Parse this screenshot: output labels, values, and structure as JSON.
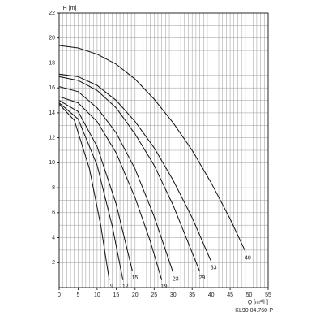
{
  "chart_data": {
    "type": "line",
    "y_label": "H [m]",
    "x_label": "Q [m³/h]",
    "note": "KL90.04.760-P",
    "xlim": [
      0,
      55
    ],
    "ylim": [
      0,
      22
    ],
    "xticks": [
      0,
      5,
      10,
      15,
      20,
      25,
      30,
      35,
      40,
      45,
      50,
      55
    ],
    "yticks": [
      2,
      4,
      6,
      8,
      10,
      12,
      14,
      16,
      18,
      20,
      22
    ],
    "grid": true,
    "minor_step_x": 1,
    "minor_step_y": 1,
    "color": "#111111",
    "series": [
      {
        "name": "9",
        "x": [
          0,
          4,
          8,
          11,
          13.2
        ],
        "values": [
          14.7,
          13.4,
          9.5,
          4.9,
          0.6
        ]
      },
      {
        "name": "12",
        "x": [
          0,
          5,
          10,
          14,
          16.8
        ],
        "values": [
          14.8,
          13.5,
          9.8,
          4.9,
          0.6
        ]
      },
      {
        "name": "15",
        "x": [
          0,
          5,
          10,
          15,
          19.3
        ],
        "values": [
          15.0,
          14.1,
          11.3,
          6.7,
          1.3
        ]
      },
      {
        "name": "19",
        "x": [
          0,
          5,
          10,
          15,
          20,
          24,
          27
        ],
        "values": [
          15.3,
          14.8,
          13.3,
          10.8,
          7.2,
          3.7,
          0.6
        ]
      },
      {
        "name": "23",
        "x": [
          0,
          5,
          10,
          15,
          20,
          25,
          30
        ],
        "values": [
          16.1,
          15.7,
          14.4,
          12.4,
          9.5,
          5.7,
          1.2
        ]
      },
      {
        "name": "29",
        "x": [
          0,
          5,
          10,
          15,
          20,
          25,
          30,
          37
        ],
        "values": [
          16.9,
          16.6,
          15.8,
          14.4,
          12.3,
          9.8,
          6.6,
          1.3
        ]
      },
      {
        "name": "33",
        "x": [
          0,
          5,
          10,
          15,
          20,
          25,
          30,
          35,
          40
        ],
        "values": [
          17.1,
          16.9,
          16.2,
          15.0,
          13.3,
          11.2,
          8.6,
          5.6,
          2.1
        ]
      },
      {
        "name": "40",
        "x": [
          0,
          5,
          10,
          15,
          20,
          25,
          30,
          35,
          40,
          45,
          49
        ],
        "values": [
          19.4,
          19.2,
          18.7,
          17.9,
          16.7,
          15.1,
          13.2,
          11.0,
          8.4,
          5.5,
          2.9
        ]
      }
    ]
  }
}
